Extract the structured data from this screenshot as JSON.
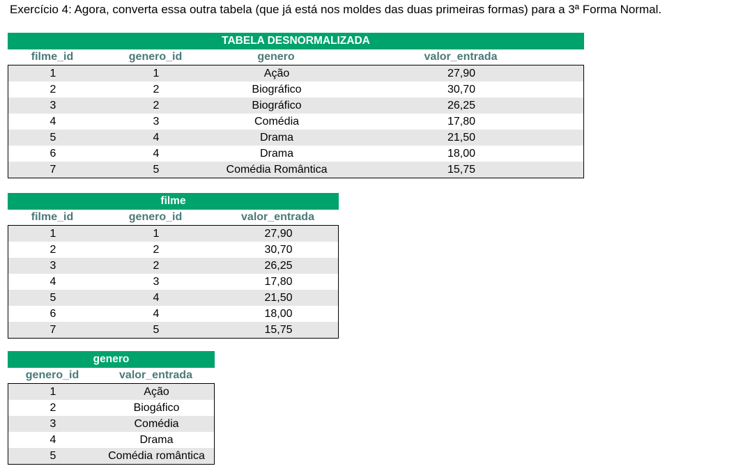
{
  "title": "Exercício 4: Agora, converta essa outra tabela (que já está nos moldes das duas primeiras formas) para a 3ª Forma Normal.",
  "colors": {
    "banner": "#00a36c",
    "header_text": "#4a7a78",
    "shade": "#e6e6e6"
  },
  "tables": [
    {
      "name": "TABELA DESNORMALIZADA",
      "columns": [
        "filme_id",
        "genero_id",
        "genero",
        "valor_entrada"
      ],
      "rows": [
        [
          "1",
          "1",
          "Ação",
          "27,90"
        ],
        [
          "2",
          "2",
          "Biográfico",
          "30,70"
        ],
        [
          "3",
          "2",
          "Biográfico",
          "26,25"
        ],
        [
          "4",
          "3",
          "Comédia",
          "17,80"
        ],
        [
          "5",
          "4",
          "Drama",
          "21,50"
        ],
        [
          "6",
          "4",
          "Drama",
          "18,00"
        ],
        [
          "7",
          "5",
          "Comédia Romântica",
          "15,75"
        ]
      ]
    },
    {
      "name": "filme",
      "columns": [
        "filme_id",
        "genero_id",
        "valor_entrada"
      ],
      "rows": [
        [
          "1",
          "1",
          "27,90"
        ],
        [
          "2",
          "2",
          "30,70"
        ],
        [
          "3",
          "2",
          "26,25"
        ],
        [
          "4",
          "3",
          "17,80"
        ],
        [
          "5",
          "4",
          "21,50"
        ],
        [
          "6",
          "4",
          "18,00"
        ],
        [
          "7",
          "5",
          "15,75"
        ]
      ]
    },
    {
      "name": "genero",
      "columns": [
        "genero_id",
        "valor_entrada"
      ],
      "rows": [
        [
          "1",
          "Ação"
        ],
        [
          "2",
          "Biogáfico"
        ],
        [
          "3",
          "Comédia"
        ],
        [
          "4",
          "Drama"
        ],
        [
          "5",
          "Comédia romântica"
        ]
      ]
    }
  ]
}
